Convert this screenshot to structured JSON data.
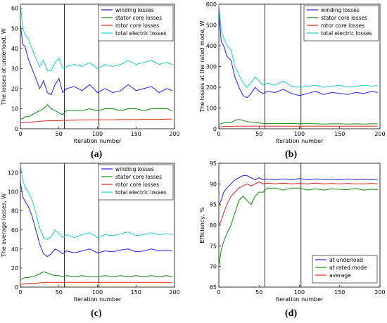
{
  "chart_data": [
    {
      "panel": "(a)",
      "type": "line",
      "title": "",
      "xlabel": "Iteration number",
      "ylabel": "The losses at underload, W",
      "xlim": [
        0,
        200
      ],
      "ylim": [
        0,
        62
      ],
      "xticks": [
        0,
        50,
        100,
        150,
        200
      ],
      "yticks": [
        0,
        10,
        20,
        30,
        40,
        50,
        60
      ],
      "vlines": [
        57,
        102
      ],
      "grid": false,
      "legend_position": "top-right",
      "x": [
        0,
        3,
        6,
        10,
        15,
        20,
        25,
        30,
        35,
        40,
        45,
        50,
        55,
        60,
        70,
        80,
        90,
        100,
        110,
        120,
        130,
        140,
        150,
        160,
        170,
        180,
        190,
        197
      ],
      "series": [
        {
          "name": "winding losses",
          "color": "#2020e0",
          "values": [
            52,
            42,
            41,
            35,
            30,
            25,
            20,
            24,
            18,
            17,
            22,
            25,
            18,
            20,
            21,
            19,
            22,
            18,
            20,
            18,
            19,
            22,
            19,
            20,
            21,
            18,
            20,
            19
          ]
        },
        {
          "name": "stator core losses",
          "color": "#118811",
          "values": [
            5,
            5,
            6,
            6,
            7,
            8,
            9,
            10,
            12,
            10,
            9,
            8,
            7,
            9,
            9,
            9,
            10,
            9,
            10,
            10,
            9,
            10,
            10,
            9,
            10,
            10,
            10,
            9
          ]
        },
        {
          "name": "rotor core losses",
          "color": "#dd2222",
          "values": [
            3,
            3,
            3,
            3.2,
            3.4,
            3.5,
            3.7,
            3.9,
            4,
            4,
            4,
            4.1,
            4.2,
            4.2,
            4.3,
            4.4,
            4.4,
            4.5,
            4.5,
            4.5,
            4.6,
            4.6,
            4.6,
            4.7,
            4.7,
            4.7,
            4.8,
            4.8
          ]
        },
        {
          "name": "total electric losses",
          "color": "#22cccc",
          "values": [
            62,
            50,
            47,
            45,
            40,
            35,
            31,
            34,
            29,
            29,
            33,
            35,
            30,
            31,
            32,
            31,
            33,
            30,
            32,
            31,
            32,
            34,
            32,
            33,
            34,
            32,
            33,
            32
          ]
        }
      ]
    },
    {
      "panel": "(b)",
      "type": "line",
      "title": "",
      "xlabel": "Iteration number",
      "ylabel": "The losses at the rated mode, W",
      "xlim": [
        0,
        200
      ],
      "ylim": [
        0,
        600
      ],
      "xticks": [
        0,
        50,
        100,
        150,
        200
      ],
      "yticks": [
        0,
        100,
        200,
        300,
        400,
        500,
        600
      ],
      "vlines": [
        57,
        102
      ],
      "grid": false,
      "legend_position": "top-right",
      "x": [
        0,
        3,
        6,
        10,
        15,
        20,
        25,
        30,
        35,
        40,
        45,
        50,
        55,
        60,
        70,
        80,
        90,
        100,
        110,
        120,
        130,
        140,
        150,
        160,
        170,
        180,
        190,
        197
      ],
      "series": [
        {
          "name": "winding losses",
          "color": "#2020e0",
          "values": [
            560,
            420,
            400,
            350,
            330,
            250,
            200,
            160,
            150,
            170,
            200,
            180,
            170,
            180,
            175,
            190,
            170,
            160,
            170,
            180,
            165,
            175,
            170,
            165,
            175,
            170,
            180,
            175
          ]
        },
        {
          "name": "stator core losses",
          "color": "#118811",
          "values": [
            20,
            25,
            28,
            30,
            30,
            40,
            45,
            40,
            35,
            32,
            30,
            28,
            26,
            25,
            25,
            25,
            26,
            24,
            25,
            24,
            23,
            24,
            24,
            23,
            24,
            23,
            24,
            24
          ]
        },
        {
          "name": "rotor core losses",
          "color": "#dd2222",
          "values": [
            10,
            10,
            11,
            12,
            12,
            13,
            13,
            13,
            13,
            13,
            13,
            13,
            13,
            13,
            13,
            13,
            13,
            13,
            13,
            13,
            13,
            13,
            13,
            13,
            13,
            13,
            13,
            13
          ]
        },
        {
          "name": "total electric losses",
          "color": "#22cccc",
          "values": [
            600,
            470,
            440,
            400,
            380,
            300,
            260,
            220,
            200,
            220,
            250,
            230,
            210,
            220,
            210,
            230,
            205,
            200,
            205,
            210,
            200,
            205,
            210,
            200,
            205,
            210,
            205,
            210
          ]
        }
      ]
    },
    {
      "panel": "(c)",
      "type": "line",
      "title": "",
      "xlabel": "Iteration number",
      "ylabel": "The average losses, W",
      "xlim": [
        0,
        200
      ],
      "ylim": [
        0,
        130
      ],
      "xticks": [
        0,
        50,
        100,
        150,
        200
      ],
      "yticks": [
        0,
        20,
        40,
        60,
        80,
        100,
        120
      ],
      "vlines": [
        57,
        102
      ],
      "grid": false,
      "legend_position": "top-right",
      "x": [
        0,
        3,
        6,
        10,
        15,
        20,
        25,
        30,
        35,
        40,
        45,
        50,
        55,
        60,
        70,
        80,
        90,
        100,
        110,
        120,
        130,
        140,
        150,
        160,
        170,
        180,
        190,
        197
      ],
      "series": [
        {
          "name": "winding losses",
          "color": "#2020e0",
          "values": [
            110,
            95,
            90,
            85,
            75,
            60,
            45,
            35,
            32,
            35,
            40,
            38,
            35,
            38,
            36,
            38,
            40,
            36,
            38,
            37,
            39,
            40,
            37,
            38,
            40,
            38,
            39,
            38
          ]
        },
        {
          "name": "stator core losses",
          "color": "#118811",
          "values": [
            8,
            9,
            10,
            10,
            11,
            12,
            14,
            16,
            15,
            13,
            12,
            12,
            11,
            12,
            11,
            12,
            11,
            11,
            12,
            11,
            12,
            11,
            12,
            11,
            12,
            11,
            12,
            11
          ]
        },
        {
          "name": "rotor core losses",
          "color": "#dd2222",
          "values": [
            3,
            3,
            3.5,
            4,
            4,
            4,
            4.5,
            4.5,
            5,
            5,
            5,
            5,
            5,
            5,
            5,
            5,
            5,
            5,
            5,
            5,
            5,
            5,
            5,
            5,
            5,
            5,
            5,
            5
          ]
        },
        {
          "name": "total electric losses",
          "color": "#22cccc",
          "values": [
            128,
            112,
            105,
            100,
            92,
            78,
            62,
            52,
            50,
            53,
            60,
            56,
            52,
            55,
            52,
            55,
            57,
            52,
            55,
            54,
            56,
            58,
            54,
            55,
            57,
            55,
            56,
            55
          ]
        }
      ]
    },
    {
      "panel": "(d)",
      "type": "line",
      "title": "",
      "xlabel": "Iteration number",
      "ylabel": "Efficiency, %",
      "xlim": [
        0,
        200
      ],
      "ylim": [
        65,
        95
      ],
      "xticks": [
        0,
        50,
        100,
        150,
        200
      ],
      "yticks": [
        65,
        70,
        75,
        80,
        85,
        90,
        95
      ],
      "vlines": [
        57,
        102
      ],
      "grid": false,
      "legend_position": "bottom-right",
      "x": [
        0,
        3,
        6,
        10,
        15,
        20,
        25,
        30,
        35,
        40,
        45,
        50,
        55,
        60,
        70,
        80,
        90,
        100,
        110,
        120,
        130,
        140,
        150,
        160,
        170,
        180,
        190,
        197
      ],
      "series": [
        {
          "name": "at underload",
          "color": "#2020e0",
          "values": [
            85,
            86,
            88,
            89,
            90,
            91,
            91.5,
            92,
            92,
            91.5,
            91,
            91.5,
            91,
            91.2,
            91,
            91.2,
            91,
            91.3,
            91,
            91.2,
            91,
            91.1,
            91,
            91.2,
            91,
            91.1,
            91,
            91.1
          ]
        },
        {
          "name": "at rated mode",
          "color": "#118811",
          "values": [
            70,
            74,
            76,
            78,
            80,
            83,
            86,
            87,
            86,
            85,
            87,
            88,
            88,
            89,
            89,
            88.5,
            89,
            89,
            88.5,
            88.8,
            88.5,
            88.8,
            88.7,
            88.6,
            88.9,
            88.5,
            88.7,
            88.6
          ]
        },
        {
          "name": "average",
          "color": "#dd2222",
          "values": [
            80,
            81,
            83,
            85,
            87,
            88,
            89,
            89.5,
            90,
            89.5,
            90,
            90.5,
            90,
            90.2,
            90,
            90.2,
            90,
            90.1,
            90,
            90.2,
            90,
            90.1,
            90,
            90.1,
            90,
            90,
            90.1,
            90
          ]
        }
      ]
    }
  ]
}
